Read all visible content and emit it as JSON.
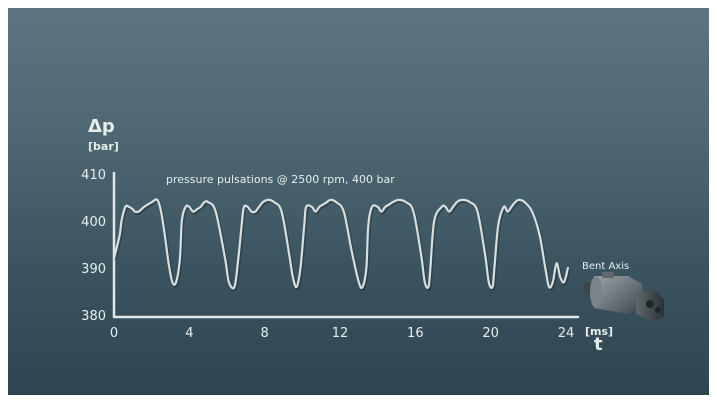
{
  "chart_data": {
    "type": "line",
    "title": "pressure pulsations @ 2500 rpm, 400 bar",
    "ylabel": "Δp",
    "yunit": "[bar]",
    "xlabel": "t",
    "xunit": "[ms]",
    "ylim": [
      380,
      410
    ],
    "xlim": [
      0,
      24
    ],
    "yticks": [
      380,
      390,
      400,
      410
    ],
    "xticks": [
      0,
      4,
      8,
      12,
      16,
      20,
      24
    ],
    "grid": false,
    "series": [
      {
        "x": [
          0,
          0.3,
          0.4,
          0.6,
          0.8,
          1.0,
          1.1,
          1.3,
          1.6,
          2.0,
          2.3,
          2.5,
          2.7,
          2.9,
          3.1,
          3.3,
          3.5,
          3.6,
          3.8,
          4.0,
          4.2,
          4.4,
          4.6,
          4.8,
          5.0,
          5.4,
          5.9,
          6.1,
          6.4,
          6.6,
          6.8,
          6.9,
          7.1,
          7.3,
          7.5,
          7.7,
          7.9,
          8.2,
          8.5,
          8.9,
          9.3,
          9.5,
          9.7,
          9.9,
          10.1,
          10.2,
          10.5,
          10.7,
          10.9,
          11.1,
          11.3,
          11.5,
          11.8,
          12.2,
          12.6,
          13.0,
          13.2,
          13.4,
          13.5,
          13.7,
          14.0,
          14.2,
          14.4,
          14.6,
          14.8,
          15.1,
          15.5,
          15.9,
          16.3,
          16.5,
          16.7,
          16.8,
          17.0,
          17.4,
          17.6,
          17.8,
          18.0,
          18.2,
          18.5,
          18.9,
          19.3,
          19.7,
          19.9,
          20.1,
          20.2,
          20.4,
          20.7,
          20.9,
          21.1,
          21.3,
          21.5,
          21.8,
          22.2,
          22.6,
          22.9,
          23.1,
          23.3,
          23.5,
          23.7,
          23.9,
          24.1
        ],
        "y": [
          392,
          397,
          400,
          403,
          403,
          402.5,
          402,
          402,
          403,
          404,
          404.5,
          402,
          397,
          391,
          387,
          387,
          392,
          400,
          403,
          403,
          402,
          402.5,
          403,
          404,
          404,
          402,
          392,
          387,
          386,
          392,
          400,
          403,
          403,
          402,
          402,
          403,
          404,
          404.5,
          404,
          402,
          393,
          388,
          386,
          390,
          399,
          403,
          403,
          402,
          403,
          403.5,
          404,
          404.5,
          404,
          402,
          394,
          387,
          386,
          390,
          399,
          403,
          403,
          402,
          403,
          403.5,
          404,
          404.5,
          404,
          402,
          393,
          387,
          386,
          390,
          400,
          403,
          403,
          402,
          403,
          404,
          404.5,
          404,
          402,
          393,
          387,
          386,
          390,
          399,
          403,
          402,
          403,
          404,
          404.5,
          404,
          402,
          397,
          390,
          386,
          387,
          391,
          388,
          387,
          390
        ]
      }
    ],
    "annotation": "Bent Axis"
  }
}
